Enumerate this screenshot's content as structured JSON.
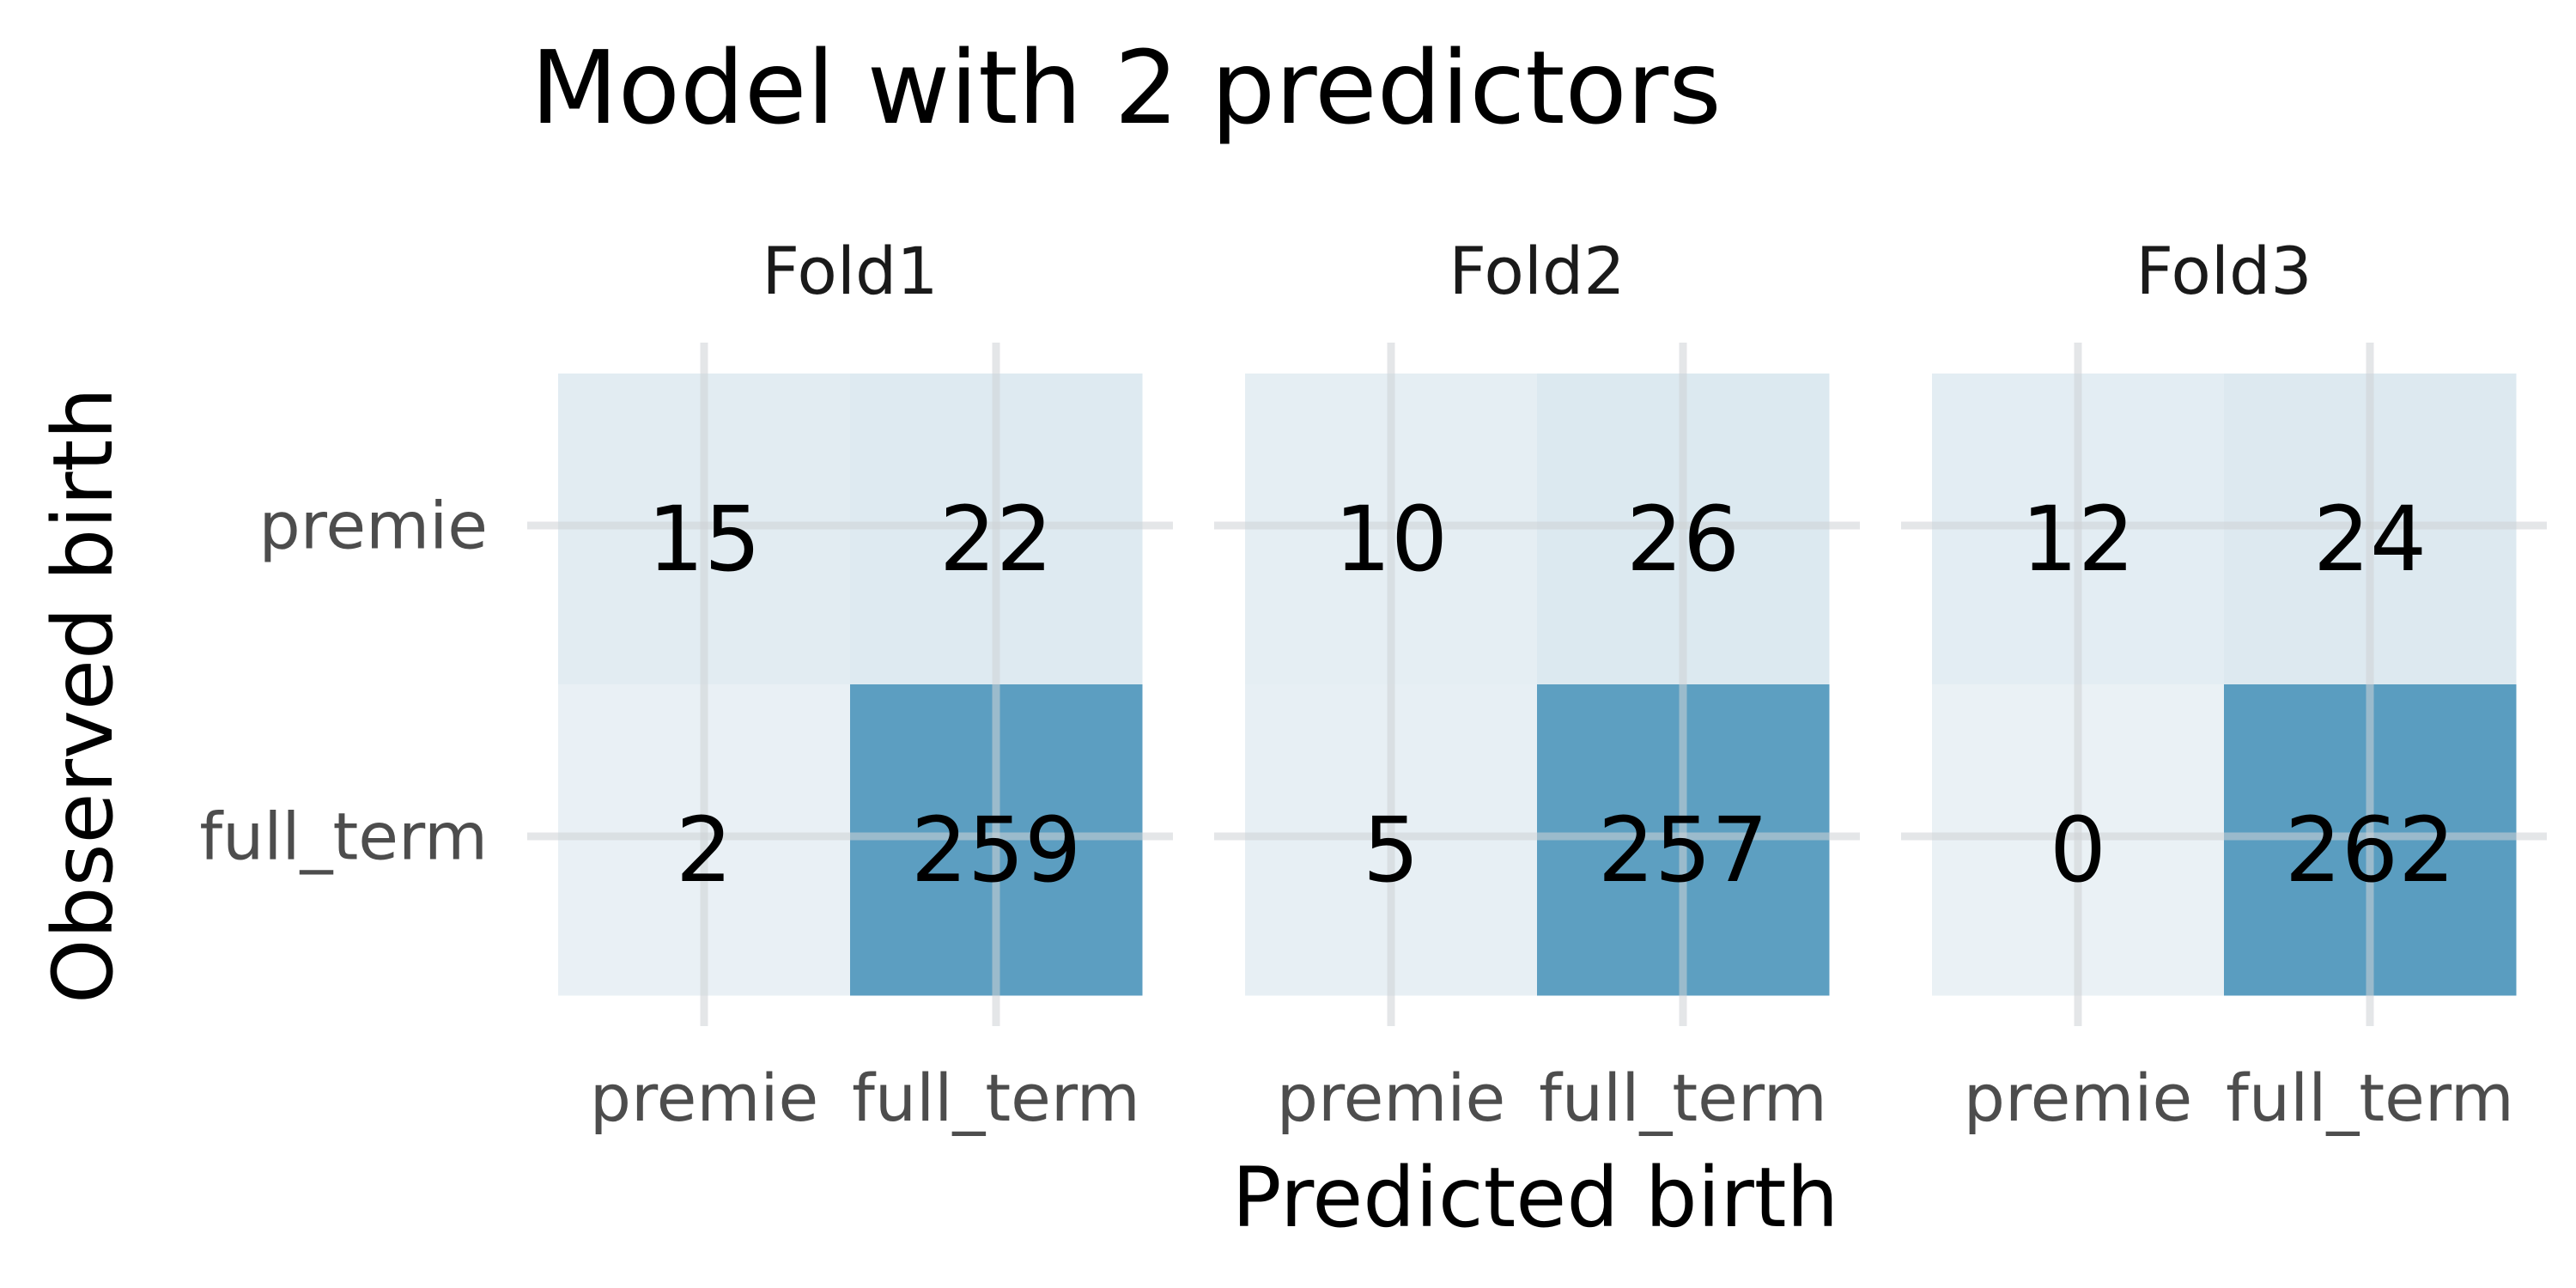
{
  "chart_data": {
    "type": "heatmap",
    "title": "Model with 2 predictors",
    "xlabel": "Predicted birth",
    "ylabel": "Observed birth",
    "x_categories": [
      "premie",
      "full_term"
    ],
    "y_categories": [
      "premie",
      "full_term"
    ],
    "panels": [
      {
        "name": "Fold1",
        "matrix": {
          "premie": {
            "premie": 15,
            "full_term": 22
          },
          "full_term": {
            "premie": 2,
            "full_term": 259
          }
        }
      },
      {
        "name": "Fold2",
        "matrix": {
          "premie": {
            "premie": 10,
            "full_term": 26
          },
          "full_term": {
            "premie": 5,
            "full_term": 257
          }
        }
      },
      {
        "name": "Fold3",
        "matrix": {
          "premie": {
            "premie": 12,
            "full_term": 24
          },
          "full_term": {
            "premie": 0,
            "full_term": 262
          }
        }
      }
    ],
    "color_low": "#eaf1f5",
    "color_high": "#5a9dc0",
    "grid": true,
    "legend": "none"
  }
}
